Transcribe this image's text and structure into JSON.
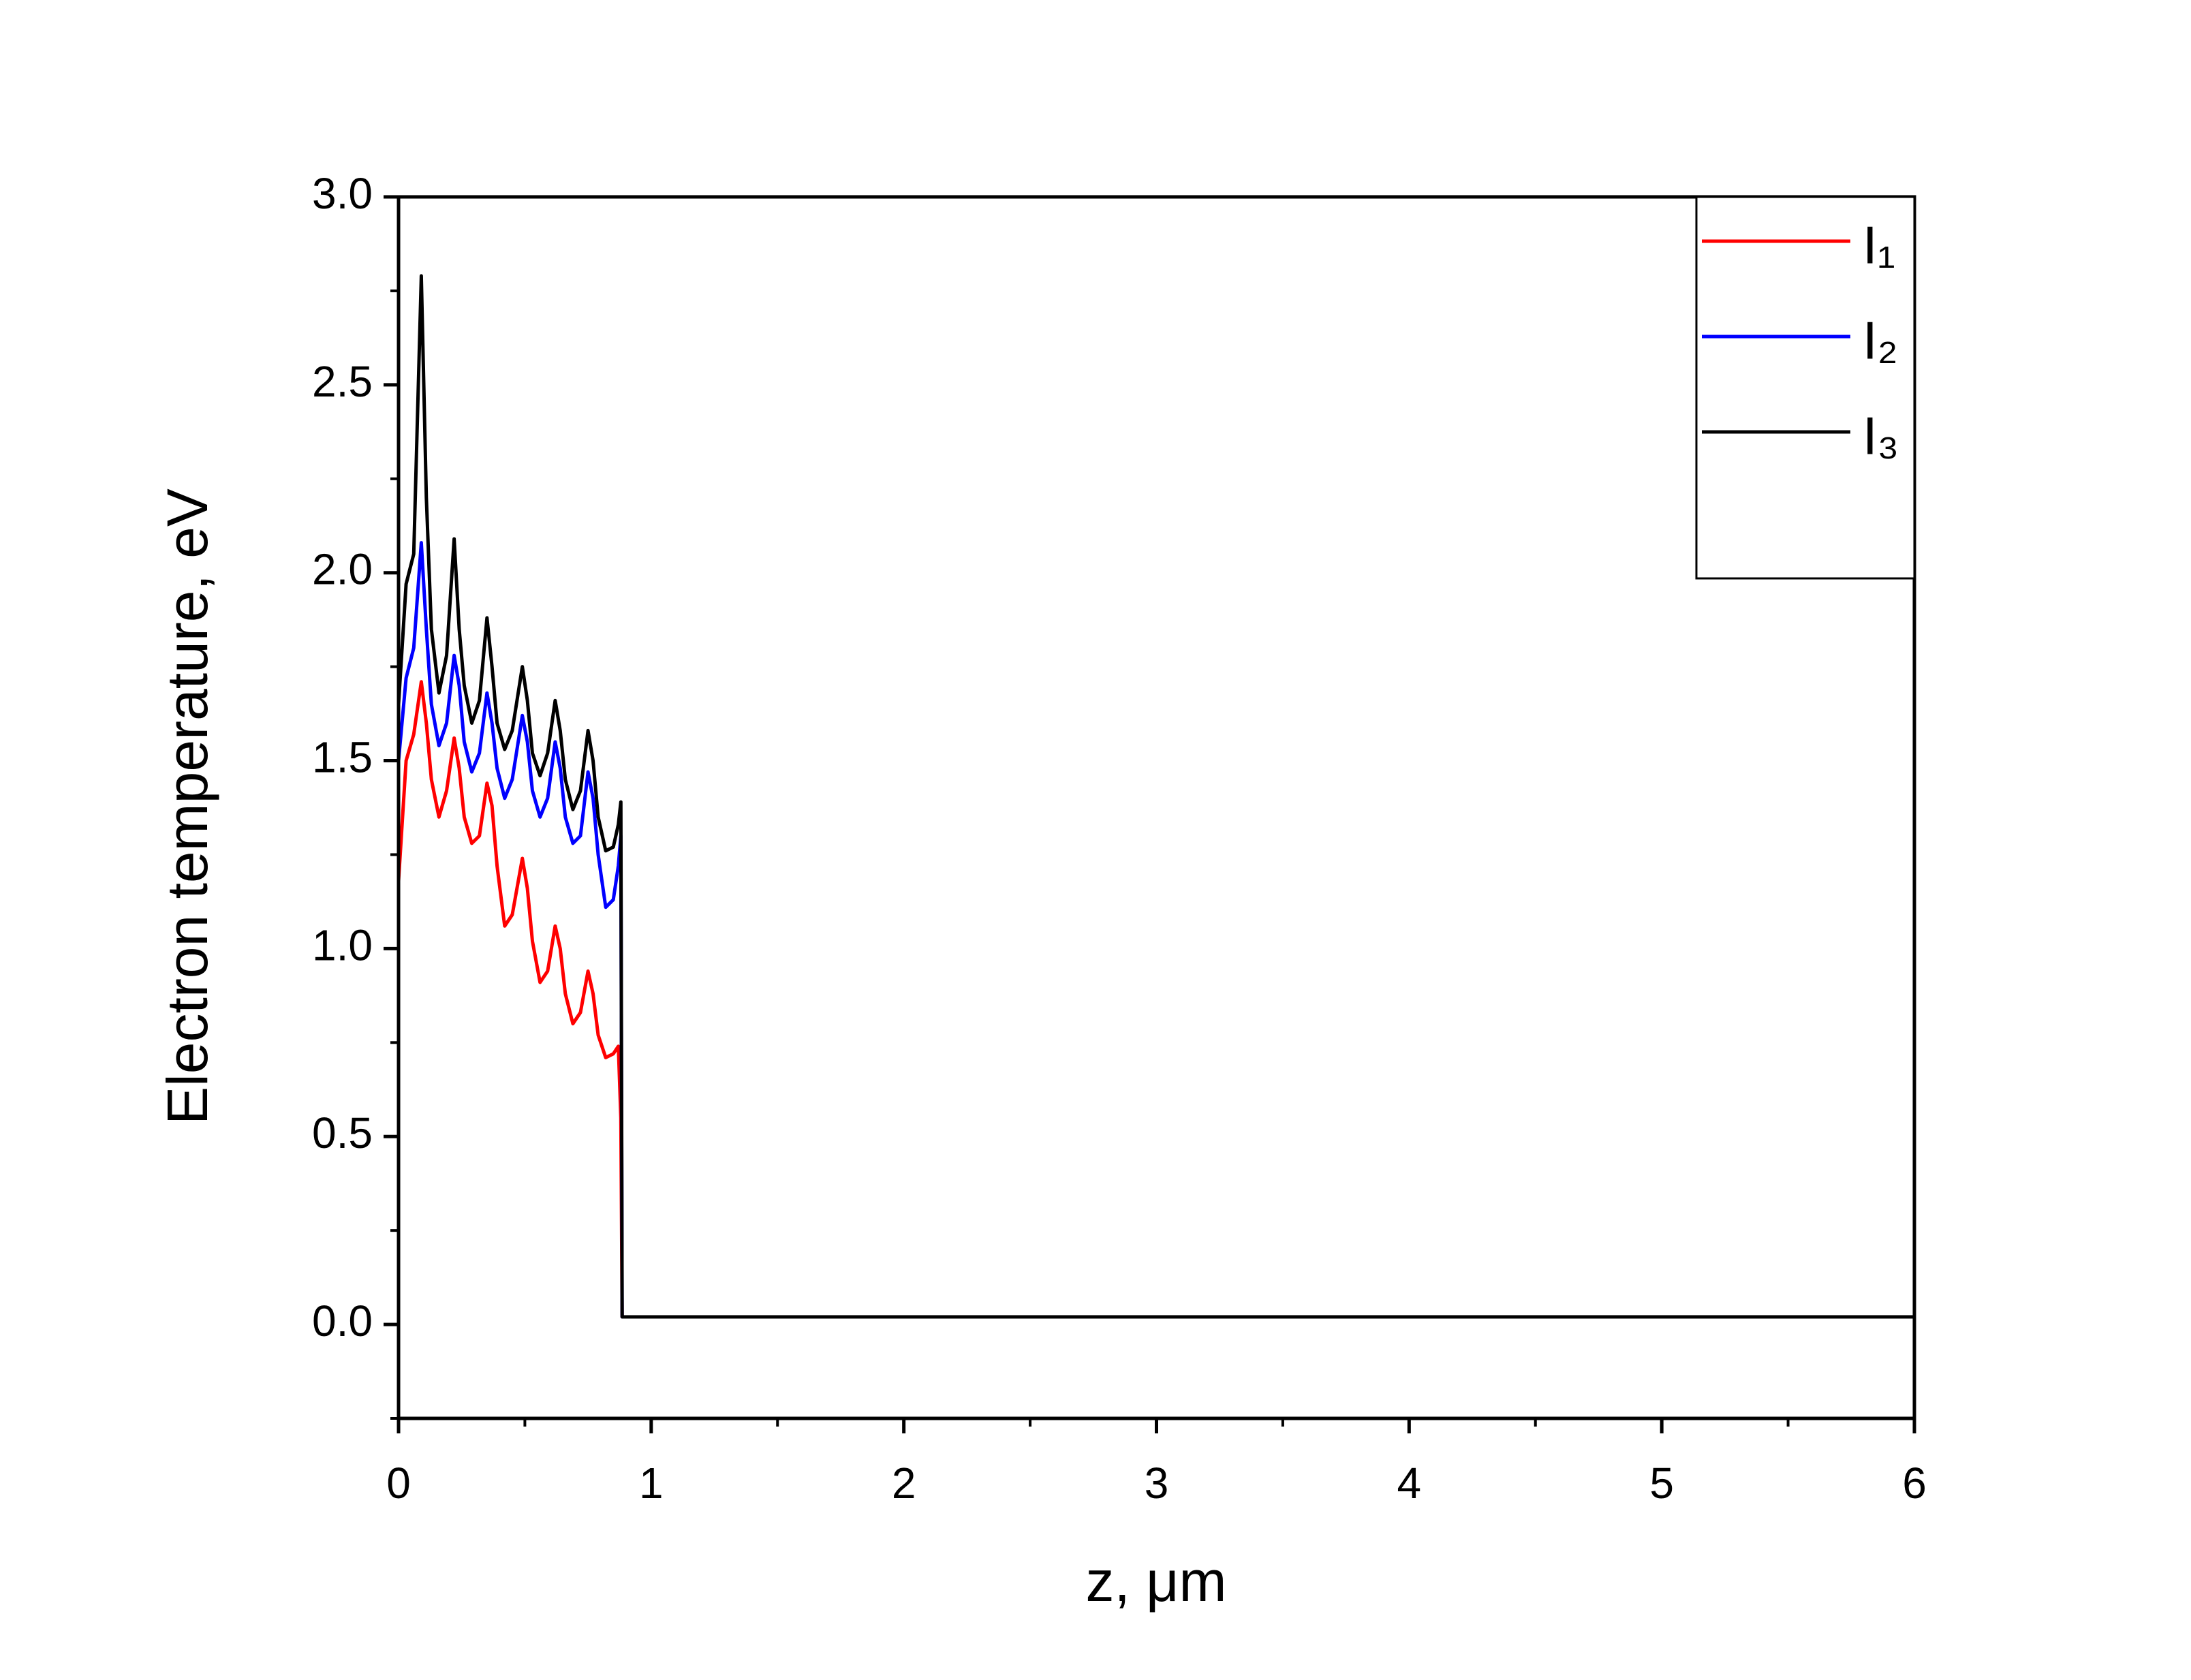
{
  "chart_data": {
    "type": "line",
    "xlabel": "z, μm",
    "ylabel": "Electron temperature, eV",
    "x": [
      0,
      0.03,
      0.06,
      0.09,
      0.11,
      0.13,
      0.16,
      0.19,
      0.22,
      0.24,
      0.26,
      0.29,
      0.32,
      0.35,
      0.37,
      0.39,
      0.42,
      0.45,
      0.49,
      0.51,
      0.53,
      0.56,
      0.59,
      0.62,
      0.64,
      0.66,
      0.69,
      0.72,
      0.75,
      0.77,
      0.79,
      0.82,
      0.85,
      0.87,
      0.88,
      0.885,
      6
    ],
    "series": [
      {
        "name": "I₁",
        "color": "#ff0000",
        "values": [
          1.18,
          1.5,
          1.57,
          1.71,
          1.6,
          1.45,
          1.35,
          1.42,
          1.56,
          1.48,
          1.35,
          1.28,
          1.3,
          1.44,
          1.38,
          1.22,
          1.06,
          1.09,
          1.24,
          1.16,
          1.02,
          0.91,
          0.94,
          1.06,
          1.0,
          0.88,
          0.8,
          0.83,
          0.94,
          0.88,
          0.77,
          0.71,
          0.72,
          0.74,
          0.55,
          0.02,
          0.02
        ]
      },
      {
        "name": "I₂",
        "color": "#0000ff",
        "values": [
          1.5,
          1.72,
          1.8,
          2.08,
          1.85,
          1.65,
          1.54,
          1.6,
          1.78,
          1.7,
          1.55,
          1.47,
          1.52,
          1.68,
          1.6,
          1.48,
          1.4,
          1.45,
          1.62,
          1.55,
          1.42,
          1.35,
          1.4,
          1.55,
          1.48,
          1.35,
          1.28,
          1.3,
          1.47,
          1.4,
          1.25,
          1.11,
          1.13,
          1.22,
          1.3,
          0.02,
          0.02
        ]
      },
      {
        "name": "I₃",
        "color": "#000000",
        "values": [
          1.65,
          1.97,
          2.05,
          2.79,
          2.2,
          1.85,
          1.68,
          1.78,
          2.09,
          1.85,
          1.7,
          1.6,
          1.66,
          1.88,
          1.75,
          1.6,
          1.53,
          1.58,
          1.75,
          1.66,
          1.52,
          1.46,
          1.52,
          1.66,
          1.58,
          1.45,
          1.37,
          1.42,
          1.58,
          1.5,
          1.35,
          1.26,
          1.27,
          1.33,
          1.39,
          0.02,
          0.02
        ]
      }
    ],
    "xlim": [
      0,
      6
    ],
    "xticks": [
      0,
      1,
      2,
      3,
      4,
      5,
      6
    ],
    "xminorticks": [
      0.5,
      1.5,
      2.5,
      3.5,
      4.5,
      5.5
    ],
    "ylim": [
      -0.25,
      3.0
    ],
    "yticks": [
      {
        "value": 0,
        "label": "0.0"
      },
      0.5,
      {
        "value": 1,
        "label": "1.0"
      },
      1.5,
      {
        "value": 2,
        "label": "2.0"
      },
      2.5,
      {
        "value": 3,
        "label": "3.0"
      }
    ],
    "yminorticks": [
      -0.25,
      0.25,
      0.75,
      1.25,
      1.75,
      2.25,
      2.75
    ],
    "legend": "upper right"
  }
}
